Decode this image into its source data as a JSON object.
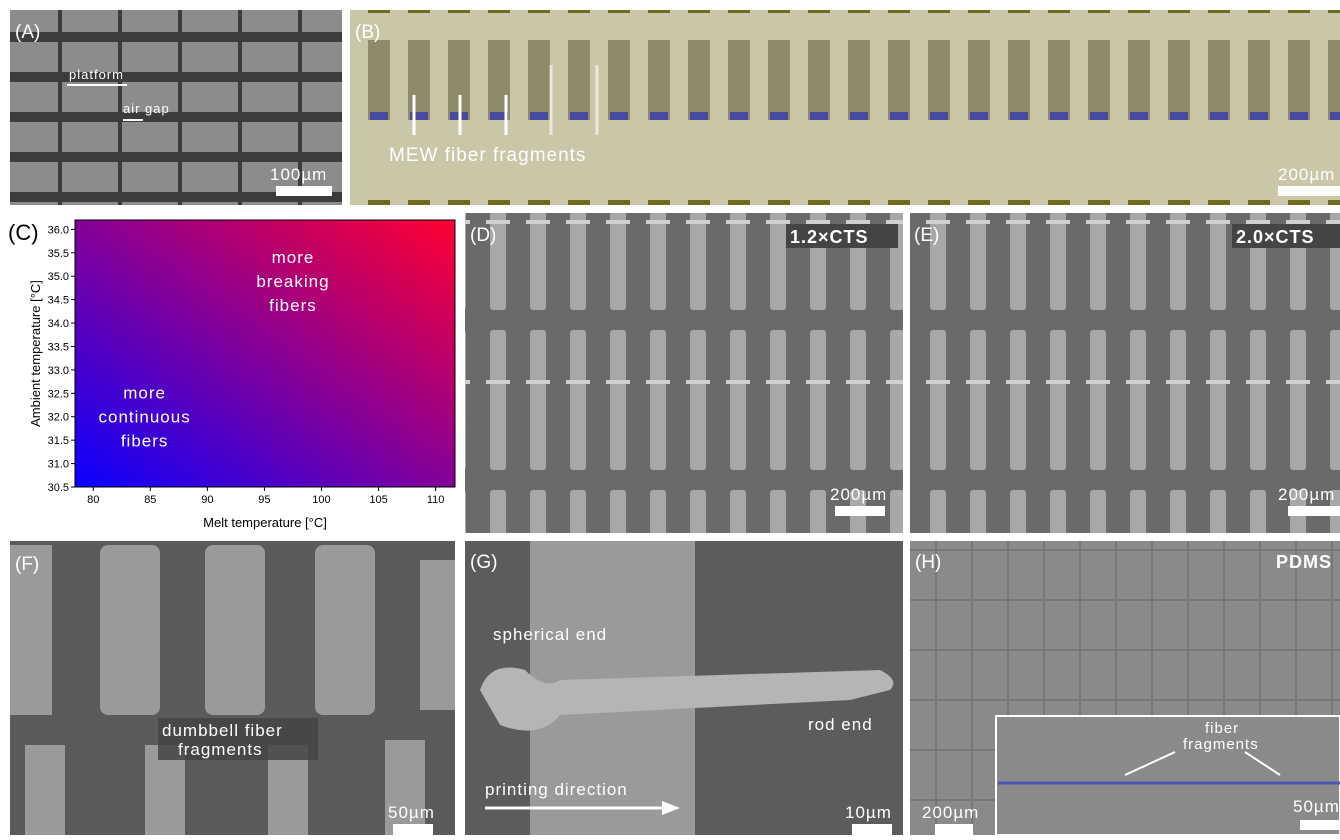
{
  "panels": {
    "a": {
      "label": "(A)",
      "platform": "platform",
      "air_gap": "air gap",
      "scale": "100µm"
    },
    "b": {
      "label": "(B)",
      "arrow_text": "MEW fiber fragments",
      "scale": "200µm"
    },
    "c": {
      "label": "(C)",
      "chart": {
        "type": "heatmap",
        "xlabel": "Melt temperature [°C]",
        "ylabel": "Ambient temperature [°C]",
        "xlim": [
          78.4,
          111.7
        ],
        "ylim": [
          30.5,
          36.2
        ],
        "xticks": [
          80,
          85,
          90,
          95,
          100,
          105,
          110
        ],
        "yticks": [
          30.5,
          {
            "value": 31,
            "label": "31.0"
          },
          31.5,
          {
            "value": 32,
            "label": "32.0"
          },
          32.5,
          {
            "value": 33,
            "label": "33.0"
          },
          33.5,
          {
            "value": 34,
            "label": "34.0"
          },
          34.5,
          {
            "value": 35,
            "label": "35.0"
          },
          35.5,
          {
            "value": 36,
            "label": "36.0"
          }
        ],
        "low_color": "#0a00ff",
        "high_color": "#ff0030",
        "annotations": [
          {
            "lines": [
              "more",
              "breaking",
              "fibers"
            ],
            "x": 97.5,
            "y": 34.9
          },
          {
            "lines": [
              "more",
              "continuous",
              "fibers"
            ],
            "x": 84.5,
            "y": 32.0
          }
        ]
      }
    },
    "d": {
      "label": "(D)",
      "tag": "1.2×CTS",
      "scale": "200µm"
    },
    "e": {
      "label": "(E)",
      "tag": "2.0×CTS",
      "scale": "200µm"
    },
    "f": {
      "label": "(F)",
      "line1": "dumbbell fiber",
      "line2": "fragments",
      "scale": "50µm"
    },
    "g": {
      "label": "(G)",
      "spherical": "spherical end",
      "rod": "rod end",
      "direction": "printing direction",
      "scale": "10µm"
    },
    "h": {
      "label": "(H)",
      "tag": "PDMS",
      "scale": "200µm",
      "inset_line1": "fiber",
      "inset_line2": "fragments",
      "inset_scale": "50µm"
    }
  }
}
